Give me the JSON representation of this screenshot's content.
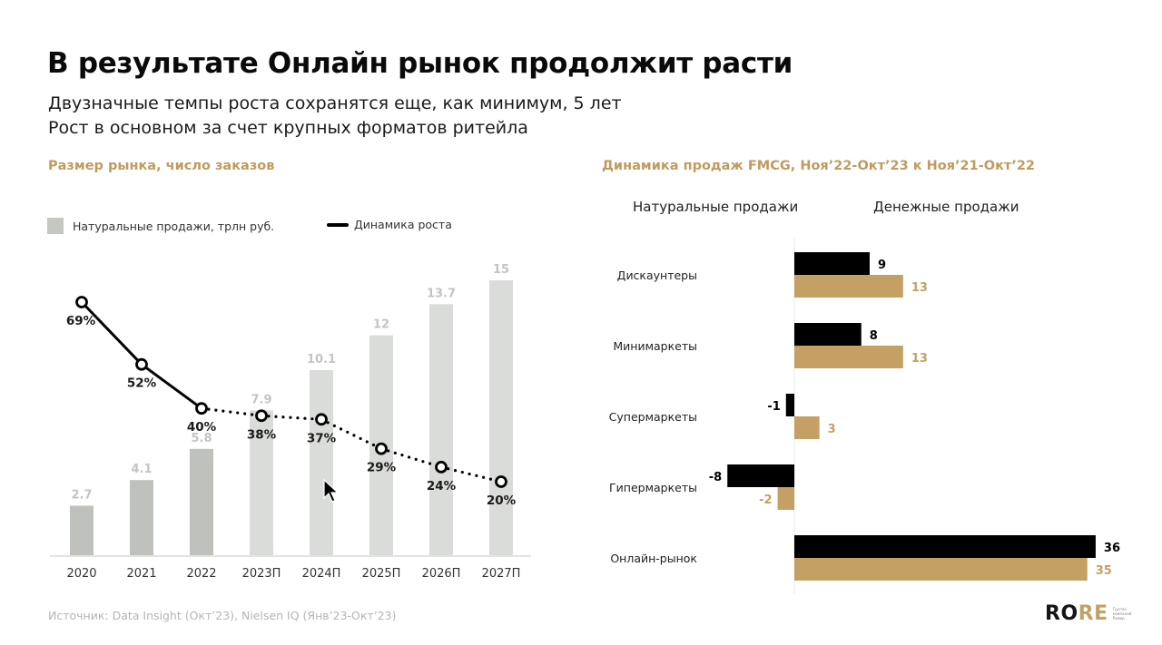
{
  "header": {
    "title": "В результате Онлайн рынок продолжит расти",
    "subtitle_line1": "Двузначные темпы роста сохранятся еще, как минимум, 5 лет",
    "subtitle_line2": "Рост в основном за счет крупных форматов ритейла"
  },
  "footer": {
    "source": "Источник: Data Insight (Окт’23), Nielsen IQ (Янв’23-Окт’23)",
    "logo": {
      "part1": "RO",
      "part2": "RE",
      "tagline": "Группа компаний Ромир"
    }
  },
  "colors": {
    "accent_gold": "#c4a064",
    "bar_actual": "#bfc1bd",
    "bar_forecast": "#dadcd9",
    "black": "#000000"
  },
  "chart_data": [
    {
      "type": "bar",
      "title": "Размер рынка, число заказов",
      "legend": {
        "bars": "Натуральные продажи, трлн руб.",
        "line": "Динамика роста",
        "placement": "top-left"
      },
      "categories": [
        "2020",
        "2021",
        "2022",
        "2023П",
        "2024П",
        "2025П",
        "2026П",
        "2027П"
      ],
      "series": [
        {
          "name": "Натуральные продажи, трлн руб.",
          "type": "bar",
          "values": [
            2.7,
            4.1,
            5.8,
            7.9,
            10.1,
            12,
            13.7,
            15
          ],
          "labels": [
            "2.7",
            "4.1",
            "5.8",
            "7.9",
            "10.1",
            "12",
            "13.7",
            "15"
          ],
          "forecast_from_index": 3
        },
        {
          "name": "Динамика роста",
          "type": "line",
          "values": [
            69,
            52,
            40,
            38,
            37,
            29,
            24,
            20
          ],
          "labels": [
            "69%",
            "52%",
            "40%",
            "38%",
            "37%",
            "29%",
            "24%",
            "20%"
          ],
          "dotted_from_index": 2
        }
      ],
      "ylim": [
        0,
        15
      ],
      "grid": false
    },
    {
      "type": "bar",
      "orientation": "horizontal",
      "title": "Динамика продаж FMCG, Ноя’22-Окт’23 к Ноя’21-Окт’22",
      "categories": [
        "Дискаунтеры",
        "Минимаркеты",
        "Супермаркеты",
        "Гипермаркеты",
        "Онлайн-рынок"
      ],
      "series": [
        {
          "name": "Натуральные продажи",
          "values": [
            9,
            8,
            -1,
            -8,
            36
          ],
          "labels": [
            "9",
            "8",
            "-1",
            "-8",
            "36"
          ]
        },
        {
          "name": "Денежные продажи",
          "values": [
            13,
            13,
            3,
            -2,
            35
          ],
          "labels": [
            "13",
            "13",
            "3",
            "-2",
            "35"
          ]
        }
      ],
      "xlim": [
        -8,
        36
      ],
      "grid": false
    }
  ]
}
